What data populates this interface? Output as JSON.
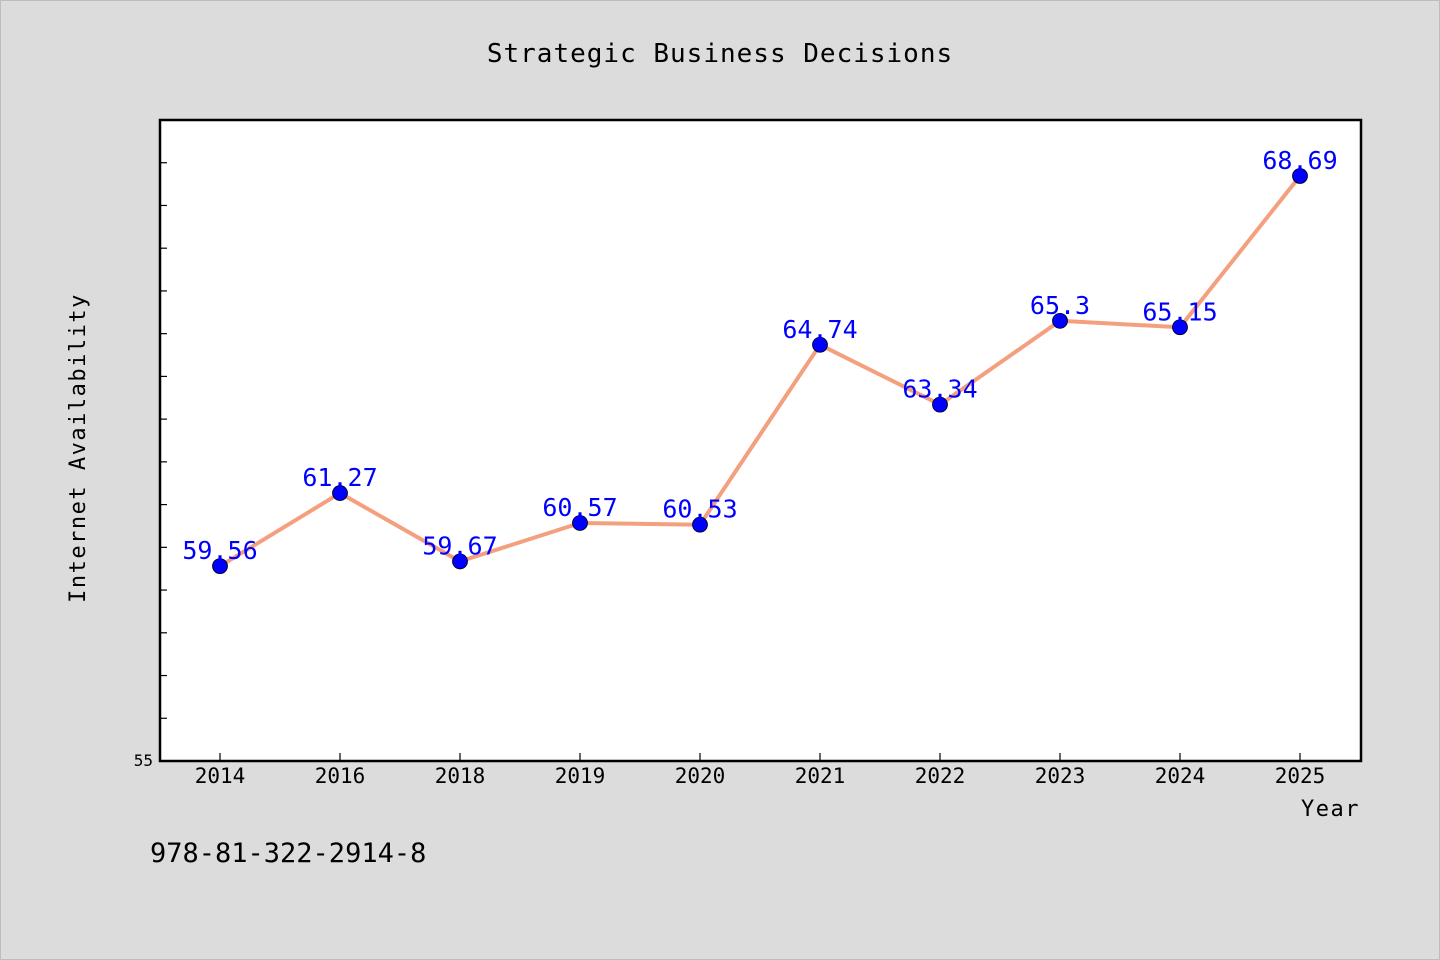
{
  "chart_data": {
    "type": "line",
    "title": "Strategic Business Decisions",
    "xlabel": "Year",
    "ylabel": "Internet Availability",
    "categories": [
      "2014",
      "2016",
      "2018",
      "2019",
      "2020",
      "2021",
      "2022",
      "2023",
      "2024",
      "2025"
    ],
    "values": [
      59.56,
      61.27,
      59.67,
      60.57,
      60.53,
      64.74,
      63.34,
      65.3,
      65.15,
      68.69
    ],
    "ylim": [
      55,
      70
    ],
    "y_tick_labels": [
      "55"
    ],
    "grid": false,
    "line_color": "#f4a07e",
    "marker_color": "#0000ff",
    "label_color": "#0000ff"
  },
  "footer_text": "978-81-322-2914-8"
}
